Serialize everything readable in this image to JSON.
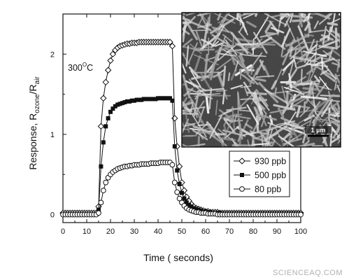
{
  "chart_data": {
    "type": "line",
    "x": [
      0,
      1,
      2,
      3,
      4,
      5,
      6,
      7,
      8,
      9,
      10,
      11,
      12,
      13,
      14,
      15,
      16,
      17,
      18,
      19,
      20,
      21,
      22,
      23,
      24,
      25,
      26,
      27,
      28,
      29,
      30,
      31,
      32,
      33,
      34,
      35,
      36,
      37,
      38,
      39,
      40,
      41,
      42,
      43,
      44,
      45,
      46,
      47,
      48,
      49,
      50,
      51,
      52,
      53,
      54,
      55,
      56,
      57,
      58,
      59,
      60,
      61,
      62,
      63,
      64,
      65,
      66,
      67,
      68,
      69,
      70,
      71,
      72,
      73,
      74,
      75,
      76,
      77,
      78,
      79,
      80,
      81,
      82,
      83,
      84,
      85,
      86,
      87,
      88,
      89,
      90,
      91,
      92,
      93,
      94,
      95,
      96,
      97,
      98,
      99,
      100
    ],
    "series": [
      {
        "name": "930 ppb",
        "marker": "open-diamond",
        "values": [
          0.02,
          0.02,
          0.02,
          0.02,
          0.02,
          0.02,
          0.02,
          0.02,
          0.02,
          0.02,
          0.02,
          0.02,
          0.02,
          0.02,
          0.02,
          0.1,
          1.1,
          1.45,
          1.65,
          1.8,
          1.92,
          2.0,
          2.05,
          2.08,
          2.1,
          2.11,
          2.12,
          2.13,
          2.13,
          2.14,
          2.14,
          2.14,
          2.15,
          2.15,
          2.15,
          2.15,
          2.15,
          2.15,
          2.15,
          2.15,
          2.15,
          2.15,
          2.15,
          2.15,
          2.15,
          2.15,
          2.1,
          1.2,
          0.85,
          0.6,
          0.4,
          0.3,
          0.22,
          0.17,
          0.13,
          0.1,
          0.08,
          0.07,
          0.06,
          0.05,
          0.04,
          0.04,
          0.03,
          0.03,
          0.03,
          0.03,
          0.02,
          0.02,
          0.02,
          0.02,
          0.02,
          0.02,
          0.02,
          0.02,
          0.02,
          0.02,
          0.02,
          0.02,
          0.02,
          0.02,
          0.02,
          0.02,
          0.02,
          0.02,
          0.02,
          0.02,
          0.02,
          0.02,
          0.02,
          0.02,
          0.02,
          0.02,
          0.02,
          0.02,
          0.02,
          0.02,
          0.02,
          0.02,
          0.02,
          0.02,
          0.02
        ]
      },
      {
        "name": "500 ppb",
        "marker": "filled-square",
        "values": [
          0.0,
          0.0,
          0.0,
          0.0,
          0.0,
          0.0,
          0.0,
          0.0,
          0.0,
          0.0,
          0.0,
          0.0,
          0.0,
          0.0,
          0.0,
          0.06,
          0.6,
          0.9,
          1.1,
          1.2,
          1.28,
          1.32,
          1.35,
          1.37,
          1.38,
          1.39,
          1.4,
          1.41,
          1.41,
          1.42,
          1.42,
          1.43,
          1.43,
          1.43,
          1.44,
          1.44,
          1.44,
          1.44,
          1.44,
          1.44,
          1.45,
          1.45,
          1.45,
          1.45,
          1.45,
          1.45,
          1.42,
          0.85,
          0.55,
          0.38,
          0.27,
          0.2,
          0.15,
          0.12,
          0.1,
          0.08,
          0.07,
          0.06,
          0.05,
          0.04,
          0.04,
          0.03,
          0.03,
          0.02,
          0.02,
          0.02,
          0.02,
          0.01,
          0.01,
          0.01,
          0.01,
          0.01,
          0.01,
          0.01,
          0.01,
          0.01,
          0.01,
          0.01,
          0.01,
          0.01,
          0.01,
          0.01,
          0.01,
          0.01,
          0.01,
          0.01,
          0.01,
          0.01,
          0.01,
          0.01,
          0.01,
          0.01,
          0.01,
          0.01,
          0.01,
          0.01,
          0.01,
          0.01,
          0.01,
          0.01,
          0.01
        ]
      },
      {
        "name": "80 ppb",
        "marker": "open-circle",
        "values": [
          0.0,
          0.0,
          0.0,
          0.0,
          0.0,
          0.0,
          0.0,
          0.0,
          0.0,
          0.0,
          0.0,
          0.0,
          0.0,
          0.0,
          0.0,
          0.02,
          0.15,
          0.3,
          0.4,
          0.46,
          0.5,
          0.53,
          0.55,
          0.57,
          0.58,
          0.59,
          0.6,
          0.6,
          0.61,
          0.61,
          0.62,
          0.62,
          0.62,
          0.63,
          0.63,
          0.63,
          0.63,
          0.64,
          0.64,
          0.64,
          0.64,
          0.65,
          0.65,
          0.65,
          0.65,
          0.65,
          0.62,
          0.4,
          0.28,
          0.2,
          0.15,
          0.11,
          0.08,
          0.06,
          0.05,
          0.04,
          0.03,
          0.03,
          0.02,
          0.02,
          0.02,
          0.01,
          0.01,
          0.01,
          0.01,
          0.0,
          0.0,
          0.0,
          0.0,
          0.0,
          0.0,
          0.0,
          0.0,
          0.0,
          0.0,
          0.0,
          0.0,
          0.0,
          0.0,
          0.0,
          0.0,
          0.0,
          0.0,
          0.0,
          0.0,
          0.0,
          0.0,
          0.0,
          0.0,
          0.0,
          0.0,
          0.0,
          0.0,
          0.0,
          0.0,
          0.0,
          0.0,
          0.0,
          0.0,
          0.0,
          0.0
        ]
      }
    ],
    "xlabel": "Time  ( seconds)",
    "ylabel_main": "Response, R",
    "ylabel_sub1": "ozone",
    "ylabel_mid": "/R",
    "ylabel_sub2": "air",
    "xlim": [
      0,
      100
    ],
    "ylim": [
      -0.1,
      2.5
    ],
    "xticks": [
      "0",
      "10",
      "20",
      "30",
      "40",
      "50",
      "60",
      "70",
      "80",
      "90",
      "100"
    ],
    "yticks": [
      "0",
      "1",
      "2"
    ],
    "annotation_temp_base": "300",
    "annotation_temp_sup": "O",
    "annotation_temp_unit": "C",
    "legend_location": "lower-right",
    "grid": false
  },
  "inset": {
    "description": "SEM micrograph of nanowires",
    "scale_label": "1 µm"
  },
  "watermark": "SCIENCEAQ.COM",
  "colors": {
    "line": "#111111",
    "background": "#ffffff",
    "inset_dark": "#2a2a2a"
  }
}
